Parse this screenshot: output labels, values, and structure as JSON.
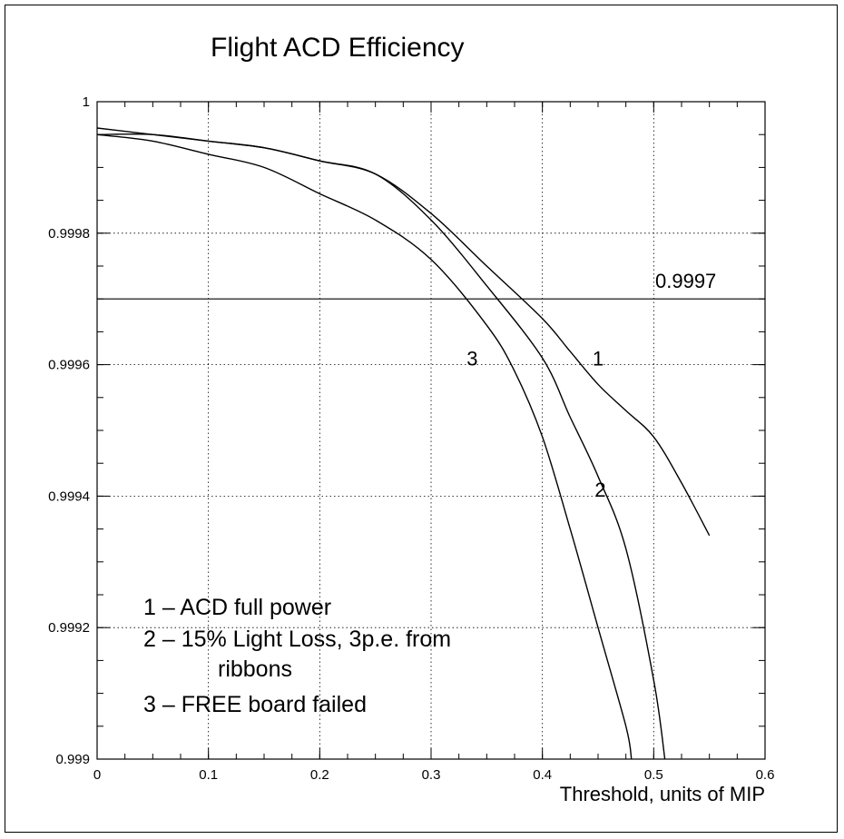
{
  "chart_data": {
    "type": "line",
    "title": "Flight ACD Efficiency",
    "xlabel": "Threshold, units of MIP",
    "ylabel": "",
    "xlim": [
      0,
      0.6
    ],
    "ylim": [
      0.999,
      1.0
    ],
    "grid": true,
    "x_ticks": [
      0,
      0.1,
      0.2,
      0.3,
      0.4,
      0.5,
      0.6
    ],
    "x_tick_labels": [
      "0",
      "0.1",
      "0.2",
      "0.3",
      "0.4",
      "0.5",
      "0.6"
    ],
    "y_ticks": [
      0.999,
      0.9992,
      0.9994,
      0.9996,
      0.9998,
      1.0
    ],
    "y_tick_labels": [
      "0.999",
      "0.9992",
      "0.9994",
      "0.9996",
      "0.9998",
      "1"
    ],
    "reference_line": {
      "y": 0.9997,
      "label": "0.9997"
    },
    "series": [
      {
        "name": "1",
        "x": [
          0,
          0.05,
          0.1,
          0.15,
          0.2,
          0.25,
          0.3,
          0.35,
          0.4,
          0.425,
          0.45,
          0.475,
          0.5,
          0.525,
          0.55
        ],
        "y": [
          0.99996,
          0.99995,
          0.99994,
          0.99993,
          0.99991,
          0.99989,
          0.99983,
          0.99975,
          0.99967,
          0.99962,
          0.99957,
          0.99953,
          0.99949,
          0.99942,
          0.99934
        ]
      },
      {
        "name": "2",
        "x": [
          0,
          0.05,
          0.1,
          0.15,
          0.2,
          0.25,
          0.3,
          0.35,
          0.4,
          0.425,
          0.45,
          0.475,
          0.5,
          0.51
        ],
        "y": [
          0.99995,
          0.99995,
          0.99994,
          0.99993,
          0.99991,
          0.99989,
          0.99982,
          0.99972,
          0.99961,
          0.99952,
          0.99943,
          0.99932,
          0.99912,
          0.999
        ]
      },
      {
        "name": "3",
        "x": [
          0,
          0.05,
          0.1,
          0.15,
          0.2,
          0.25,
          0.3,
          0.35,
          0.375,
          0.4,
          0.425,
          0.45,
          0.475,
          0.48
        ],
        "y": [
          0.99995,
          0.99994,
          0.99992,
          0.9999,
          0.99986,
          0.99982,
          0.99976,
          0.99966,
          0.99959,
          0.99949,
          0.99935,
          0.9992,
          0.99905,
          0.999
        ]
      }
    ],
    "curve_labels": [
      {
        "text": "1",
        "x": 0.445,
        "y": 0.99961
      },
      {
        "text": "2",
        "x": 0.447,
        "y": 0.99941
      },
      {
        "text": "3",
        "x": 0.332,
        "y": 0.99961
      }
    ],
    "legend": {
      "placement": "bottom-left",
      "entries": [
        "1 – ACD full power",
        "2 – 15% Light Loss, 3p.e. from",
        "ribbons",
        "3 – FREE board failed"
      ]
    }
  }
}
